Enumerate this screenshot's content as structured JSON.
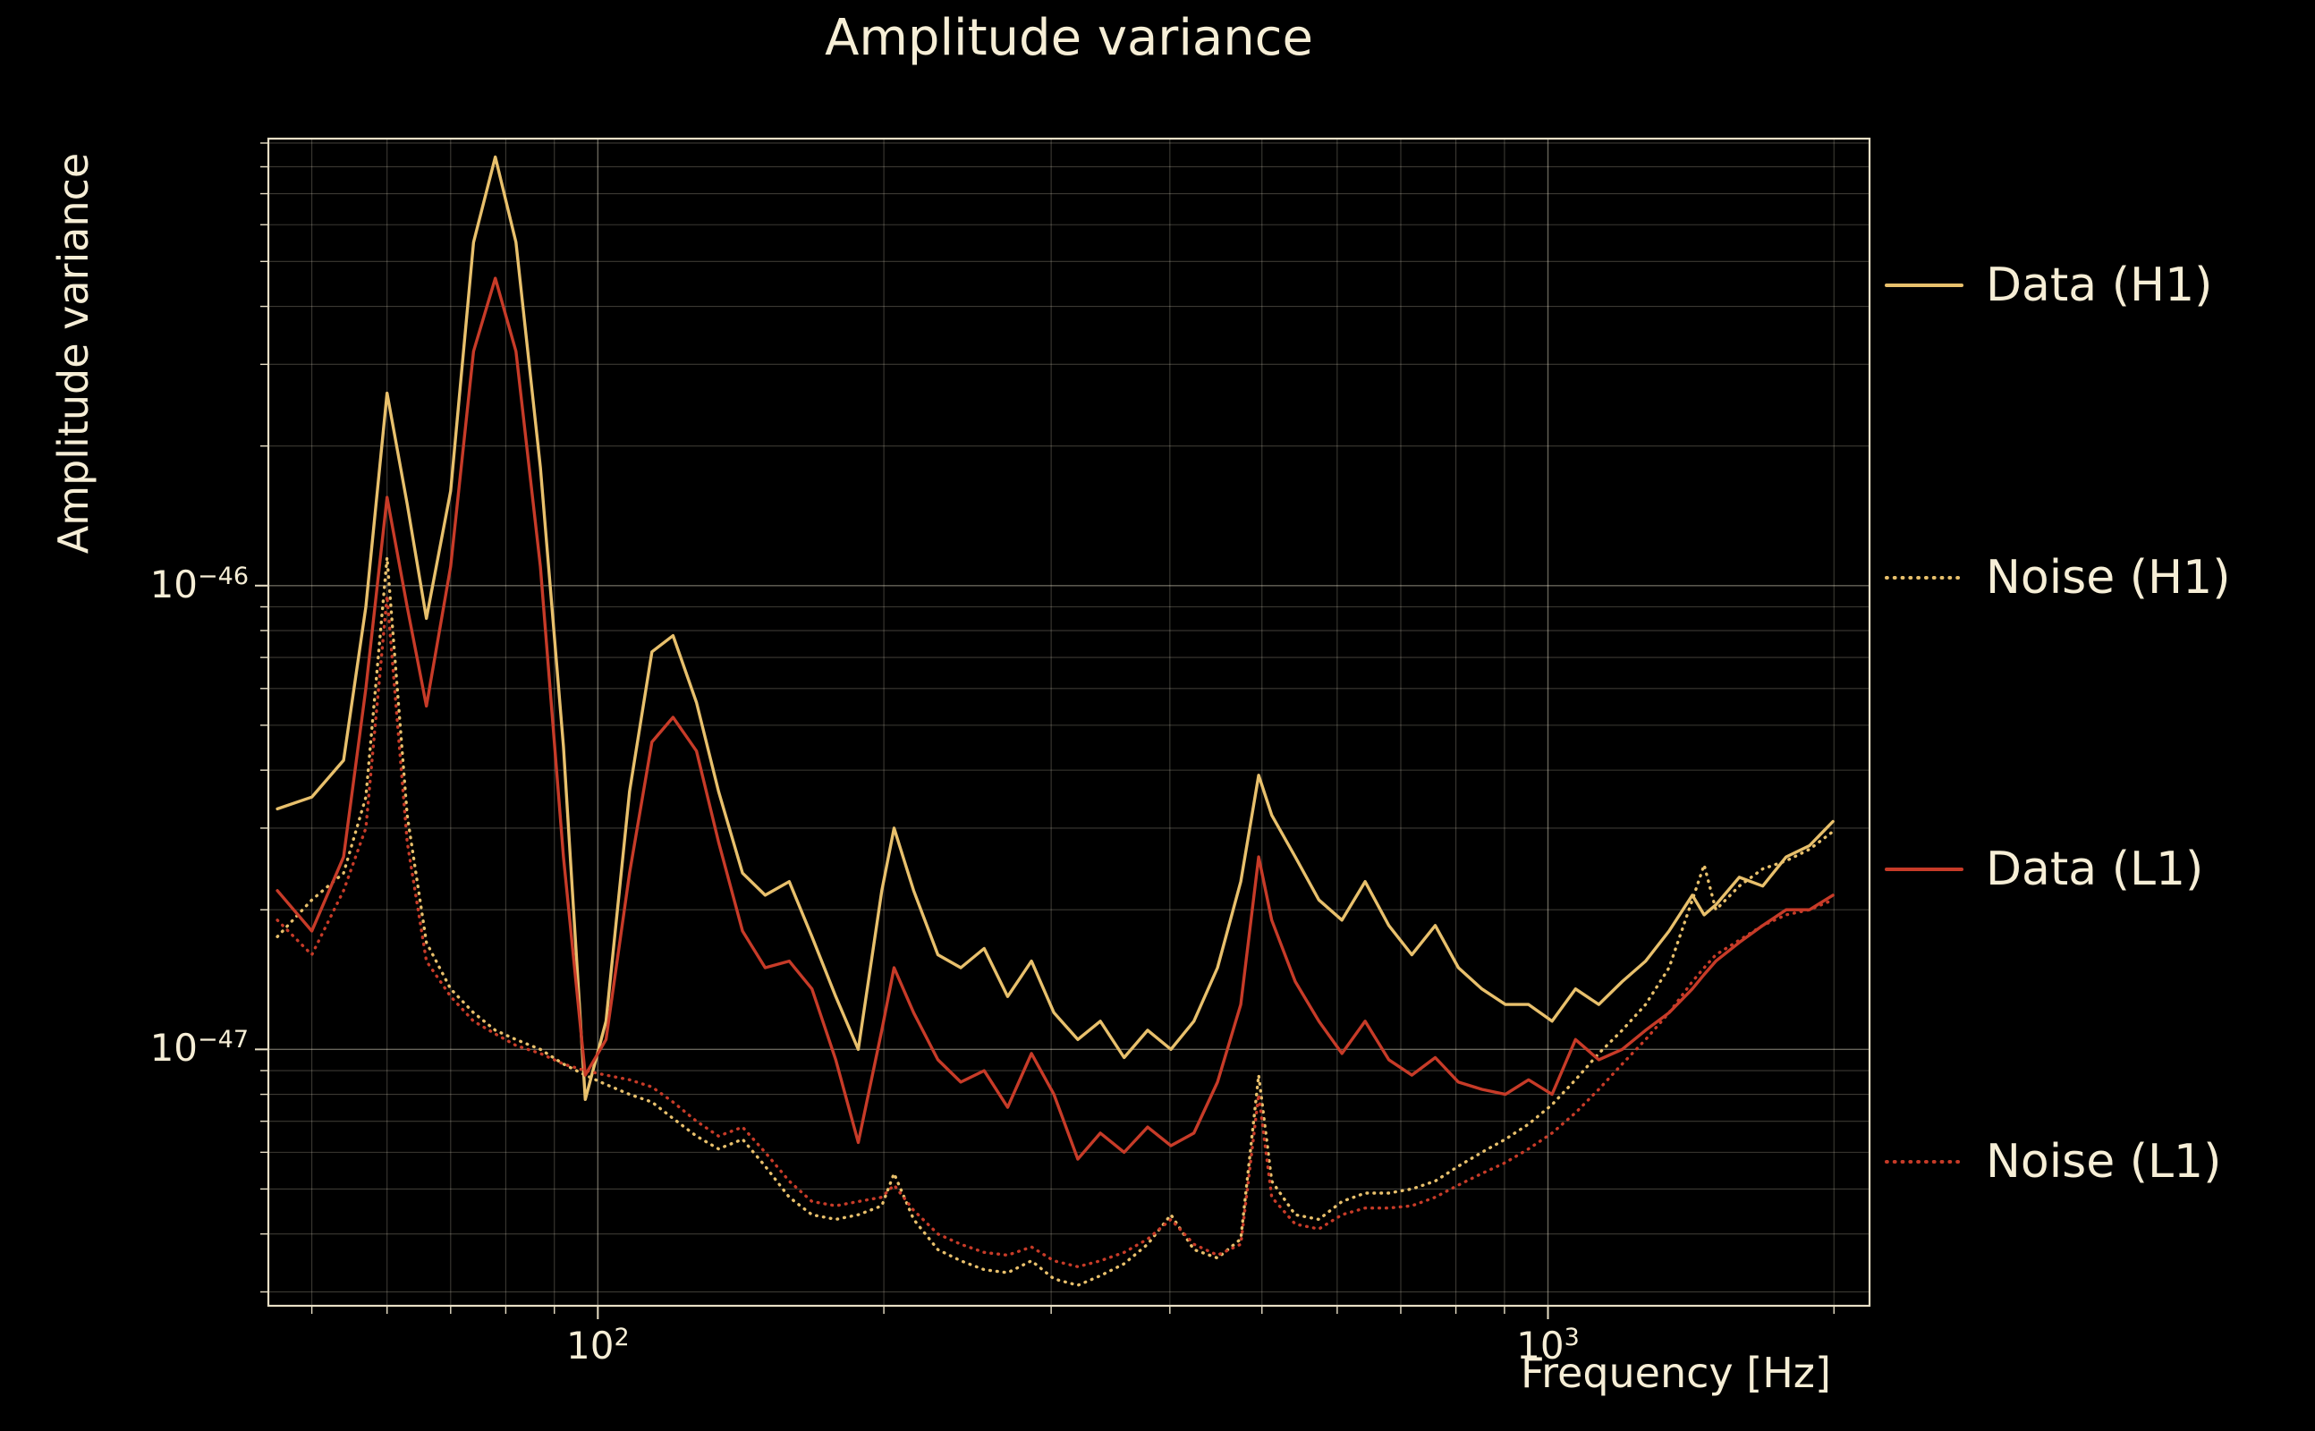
{
  "chart_data": {
    "type": "line",
    "title": "Amplitude variance",
    "xlabel": "Frequency [Hz]",
    "ylabel": "Amplitude variance",
    "x_scale": "log",
    "y_scale": "log",
    "xlim": [
      45,
      2180
    ],
    "ylim": [
      2.8e-48,
      9.2e-46
    ],
    "grid": true,
    "legend_position": "right-outside",
    "colors": {
      "background": "#000000",
      "text": "#f6eed6",
      "grid": "#f6eed6",
      "frame": "#e8dfc6",
      "h1": "#e8c06c",
      "l1": "#c73b28"
    },
    "x_ticks": [
      {
        "value": 100,
        "base": "10",
        "exp": "2"
      },
      {
        "value": 1000,
        "base": "10",
        "exp": "3"
      }
    ],
    "y_ticks": [
      {
        "value": 1e-46,
        "base": "10",
        "exp": "−46"
      },
      {
        "value": 1e-47,
        "base": "10",
        "exp": "−47"
      }
    ],
    "x": [
      46,
      50,
      54,
      57,
      60,
      63,
      66,
      70,
      74,
      78,
      82,
      87,
      92,
      97,
      102,
      108,
      114,
      120,
      127,
      134,
      142,
      150,
      159,
      168,
      178,
      188,
      199,
      205,
      215,
      228,
      241,
      255,
      270,
      286,
      302,
      320,
      338,
      358,
      379,
      401,
      424,
      449,
      475,
      496,
      512,
      542,
      574,
      607,
      642,
      680,
      719,
      761,
      805,
      852,
      902,
      954,
      1010,
      1069,
      1131,
      1197,
      1267,
      1341,
      1419,
      1460,
      1502,
      1590,
      1683,
      1781,
      1885,
      1995
    ],
    "series": [
      {
        "id": "data-h1",
        "name": "Data (H1)",
        "color": "#e8c06c",
        "style": "solid",
        "y": [
          3.3e-47,
          3.5e-47,
          4.2e-47,
          9e-47,
          2.6e-46,
          1.5e-46,
          8.5e-47,
          1.6e-46,
          5.5e-46,
          8.4e-46,
          5.5e-46,
          1.8e-46,
          4.5e-47,
          7.8e-48,
          1.15e-47,
          3.6e-47,
          7.2e-47,
          7.8e-47,
          5.6e-47,
          3.6e-47,
          2.4e-47,
          2.15e-47,
          2.3e-47,
          1.75e-47,
          1.3e-47,
          1e-47,
          2.2e-47,
          3e-47,
          2.2e-47,
          1.6e-47,
          1.5e-47,
          1.65e-47,
          1.3e-47,
          1.55e-47,
          1.2e-47,
          1.05e-47,
          1.15e-47,
          9.6e-48,
          1.1e-47,
          1e-47,
          1.15e-47,
          1.5e-47,
          2.3e-47,
          3.9e-47,
          3.2e-47,
          2.6e-47,
          2.1e-47,
          1.9e-47,
          2.3e-47,
          1.85e-47,
          1.6e-47,
          1.85e-47,
          1.5e-47,
          1.35e-47,
          1.25e-47,
          1.25e-47,
          1.15e-47,
          1.35e-47,
          1.25e-47,
          1.4e-47,
          1.55e-47,
          1.8e-47,
          2.15e-47,
          1.95e-47,
          2.05e-47,
          2.35e-47,
          2.25e-47,
          2.6e-47,
          2.75e-47,
          3.1e-47
        ]
      },
      {
        "id": "noise-h1",
        "name": "Noise (H1)",
        "color": "#e8c06c",
        "style": "dotted",
        "y": [
          1.75e-47,
          2.1e-47,
          2.4e-47,
          3.5e-47,
          1.15e-46,
          3.2e-47,
          1.7e-47,
          1.35e-47,
          1.2e-47,
          1.1e-47,
          1.05e-47,
          1e-47,
          9.3e-48,
          8.8e-48,
          8.4e-48,
          8e-48,
          7.7e-48,
          7.1e-48,
          6.5e-48,
          6.1e-48,
          6.4e-48,
          5.6e-48,
          4.8e-48,
          4.4e-48,
          4.3e-48,
          4.4e-48,
          4.6e-48,
          5.4e-48,
          4.3e-48,
          3.7e-48,
          3.5e-48,
          3.35e-48,
          3.3e-48,
          3.5e-48,
          3.2e-48,
          3.1e-48,
          3.25e-48,
          3.45e-48,
          3.8e-48,
          4.4e-48,
          3.7e-48,
          3.55e-48,
          3.9e-48,
          8.8e-48,
          5.2e-48,
          4.4e-48,
          4.3e-48,
          4.7e-48,
          4.9e-48,
          4.9e-48,
          5e-48,
          5.2e-48,
          5.6e-48,
          6e-48,
          6.4e-48,
          6.9e-48,
          7.6e-48,
          8.6e-48,
          9.8e-48,
          1.1e-47,
          1.25e-47,
          1.5e-47,
          2.1e-47,
          2.5e-47,
          2e-47,
          2.25e-47,
          2.45e-47,
          2.55e-47,
          2.7e-47,
          2.95e-47
        ]
      },
      {
        "id": "data-l1",
        "name": "Data (L1)",
        "color": "#c73b28",
        "style": "solid",
        "y": [
          2.2e-47,
          1.8e-47,
          2.6e-47,
          6e-47,
          1.55e-46,
          9e-47,
          5.5e-47,
          1.1e-46,
          3.2e-46,
          4.6e-46,
          3.2e-46,
          1.1e-46,
          2.6e-47,
          8.8e-48,
          1.05e-47,
          2.4e-47,
          4.6e-47,
          5.2e-47,
          4.4e-47,
          2.8e-47,
          1.8e-47,
          1.5e-47,
          1.55e-47,
          1.35e-47,
          9.5e-48,
          6.3e-48,
          1.1e-47,
          1.5e-47,
          1.2e-47,
          9.5e-48,
          8.5e-48,
          9e-48,
          7.5e-48,
          9.8e-48,
          8e-48,
          5.8e-48,
          6.6e-48,
          6e-48,
          6.8e-48,
          6.2e-48,
          6.6e-48,
          8.5e-48,
          1.25e-47,
          2.6e-47,
          1.9e-47,
          1.4e-47,
          1.15e-47,
          9.8e-48,
          1.15e-47,
          9.5e-48,
          8.8e-48,
          9.6e-48,
          8.5e-48,
          8.2e-48,
          8e-48,
          8.6e-48,
          8e-48,
          1.05e-47,
          9.5e-48,
          1e-47,
          1.1e-47,
          1.2e-47,
          1.35e-47,
          1.45e-47,
          1.55e-47,
          1.7e-47,
          1.85e-47,
          2e-47,
          2e-47,
          2.15e-47
        ]
      },
      {
        "id": "noise-l1",
        "name": "Noise (L1)",
        "color": "#c73b28",
        "style": "dotted",
        "y": [
          1.9e-47,
          1.6e-47,
          2.2e-47,
          3e-47,
          9.5e-47,
          2.8e-47,
          1.55e-47,
          1.3e-47,
          1.15e-47,
          1.08e-47,
          1.02e-47,
          9.8e-48,
          9.3e-48,
          9e-48,
          8.8e-48,
          8.6e-48,
          8.3e-48,
          7.7e-48,
          7e-48,
          6.5e-48,
          6.8e-48,
          6e-48,
          5.2e-48,
          4.7e-48,
          4.6e-48,
          4.7e-48,
          4.8e-48,
          5.1e-48,
          4.5e-48,
          4e-48,
          3.8e-48,
          3.65e-48,
          3.6e-48,
          3.75e-48,
          3.5e-48,
          3.4e-48,
          3.5e-48,
          3.65e-48,
          3.9e-48,
          4.3e-48,
          3.8e-48,
          3.6e-48,
          3.8e-48,
          8e-48,
          4.8e-48,
          4.2e-48,
          4.1e-48,
          4.4e-48,
          4.55e-48,
          4.55e-48,
          4.6e-48,
          4.8e-48,
          5.1e-48,
          5.4e-48,
          5.7e-48,
          6.1e-48,
          6.6e-48,
          7.3e-48,
          8.2e-48,
          9.3e-48,
          1.05e-47,
          1.2e-47,
          1.4e-47,
          1.5e-47,
          1.6e-47,
          1.72e-47,
          1.85e-47,
          1.95e-47,
          2e-47,
          2.1e-47
        ]
      }
    ]
  }
}
